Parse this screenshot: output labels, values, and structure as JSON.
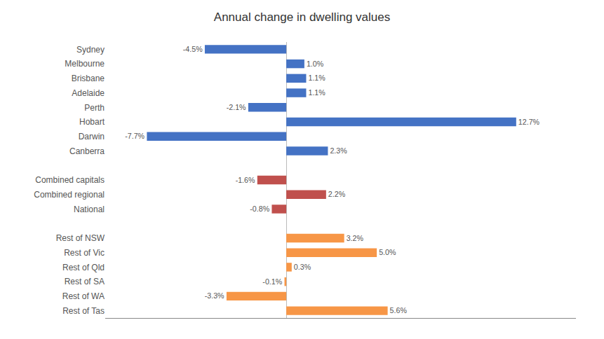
{
  "chart_data": {
    "type": "bar",
    "orientation": "horizontal",
    "title": "Annual change in dwelling values",
    "categories": [
      "Sydney",
      "Melbourne",
      "Brisbane",
      "Adelaide",
      "Perth",
      "Hobart",
      "Darwin",
      "Canberra",
      null,
      "Combined capitals",
      "Combined regional",
      "National",
      null,
      "Rest of NSW",
      "Rest of Vic",
      "Rest of Qld",
      "Rest of SA",
      "Rest of WA",
      "Rest of Tas"
    ],
    "values": [
      -4.5,
      1.0,
      1.1,
      1.1,
      -2.1,
      12.7,
      -7.7,
      2.3,
      null,
      -1.6,
      2.2,
      -0.8,
      null,
      3.2,
      5.0,
      0.3,
      -0.1,
      -3.3,
      5.6
    ],
    "value_labels": [
      "-4.5%",
      "1.0%",
      "1.1%",
      "1.1%",
      "-2.1%",
      "12.7%",
      "-7.7%",
      "2.3%",
      null,
      "-1.6%",
      "2.2%",
      "-0.8%",
      null,
      "3.2%",
      "5.0%",
      "0.3%",
      "-0.1%",
      "-3.3%",
      "5.6%"
    ],
    "colors": [
      "#4472C4",
      "#4472C4",
      "#4472C4",
      "#4472C4",
      "#4472C4",
      "#4472C4",
      "#4472C4",
      "#4472C4",
      null,
      "#C0504D",
      "#C0504D",
      "#C0504D",
      null,
      "#F79646",
      "#F79646",
      "#F79646",
      "#F79646",
      "#F79646",
      "#F79646"
    ],
    "xlim": [
      -10,
      16
    ],
    "xticks": [],
    "grid": false,
    "data_labels": true,
    "tick_labels": "y"
  }
}
